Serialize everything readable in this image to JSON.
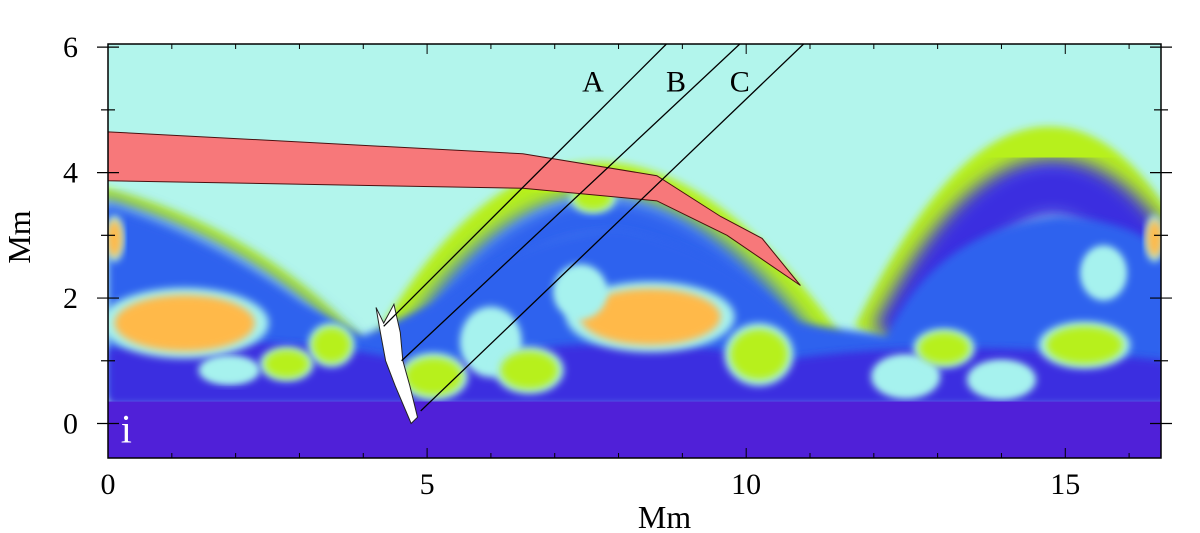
{
  "chart_data": {
    "type": "heatmap",
    "panel_label": "i",
    "xlabel": "Mm",
    "ylabel": "Mm",
    "xlim": [
      0,
      16.5
    ],
    "ylim": [
      -0.55,
      6.05
    ],
    "xticks": [
      0,
      5,
      10,
      15
    ],
    "xtick_labels": [
      "0",
      "5",
      "10",
      "15"
    ],
    "yticks": [
      0,
      2,
      4,
      6
    ],
    "ytick_labels": [
      "0",
      "2",
      "4",
      "6"
    ],
    "grid": false,
    "colors": {
      "background_cyan": "#b2f5ec",
      "green_shell": "#b7f01e",
      "dark_blue": "#3b2fe0",
      "mid_blue": "#2f62ee",
      "light_cyan": "#a6f2ee",
      "orange_yellow": "#ffb94a",
      "bottom_violet": "#5020d8",
      "pink_band": "#f7787a",
      "spicule": "#ffffff"
    },
    "pink_band": {
      "top": [
        [
          0,
          4.65
        ],
        [
          6.5,
          4.3
        ],
        [
          8.6,
          3.95
        ],
        [
          9.6,
          3.3
        ],
        [
          10.25,
          2.95
        ],
        [
          10.85,
          2.2
        ]
      ],
      "bottom": [
        [
          10.85,
          2.2
        ],
        [
          9.7,
          3.0
        ],
        [
          8.6,
          3.55
        ],
        [
          6.5,
          3.75
        ],
        [
          0,
          3.87
        ]
      ]
    },
    "spicule_outline": [
      [
        4.2,
        1.85
      ],
      [
        4.32,
        1.6
      ],
      [
        4.48,
        1.9
      ],
      [
        4.58,
        1.45
      ],
      [
        4.62,
        1.0
      ],
      [
        4.73,
        0.6
      ],
      [
        4.85,
        0.1
      ],
      [
        4.75,
        0.0
      ],
      [
        4.5,
        0.6
      ],
      [
        4.35,
        1.0
      ],
      [
        4.25,
        1.55
      ]
    ],
    "slit_lines": [
      {
        "name": "A",
        "x0": 4.32,
        "y0": 1.55,
        "x1": 8.75,
        "y1": 6.05
      },
      {
        "name": "B",
        "x0": 4.6,
        "y0": 1.0,
        "x1": 9.9,
        "y1": 6.05
      },
      {
        "name": "C",
        "x0": 4.9,
        "y0": 0.2,
        "x1": 10.9,
        "y1": 6.05
      }
    ],
    "line_labels": [
      {
        "text": "A",
        "x": 7.6,
        "y": 5.45
      },
      {
        "text": "B",
        "x": 8.9,
        "y": 5.45
      },
      {
        "text": "C",
        "x": 9.9,
        "y": 5.45
      }
    ],
    "blobs": [
      {
        "x": 1.2,
        "y": 1.6,
        "rx": 1.1,
        "ry": 0.45,
        "color": "#ffb94a"
      },
      {
        "x": 8.5,
        "y": 1.7,
        "rx": 1.1,
        "ry": 0.45,
        "color": "#ffb94a"
      },
      {
        "x": 3.5,
        "y": 1.25,
        "rx": 0.3,
        "ry": 0.28,
        "color": "#b7f01e"
      },
      {
        "x": 2.8,
        "y": 0.95,
        "rx": 0.35,
        "ry": 0.22,
        "color": "#b7f01e"
      },
      {
        "x": 1.9,
        "y": 0.85,
        "rx": 0.4,
        "ry": 0.18,
        "color": "#a6f2ee"
      },
      {
        "x": 5.1,
        "y": 0.75,
        "rx": 0.45,
        "ry": 0.3,
        "color": "#b7f01e"
      },
      {
        "x": 6.0,
        "y": 1.3,
        "rx": 0.4,
        "ry": 0.45,
        "color": "#a6f2ee"
      },
      {
        "x": 6.6,
        "y": 0.85,
        "rx": 0.45,
        "ry": 0.3,
        "color": "#b7f01e"
      },
      {
        "x": 7.4,
        "y": 2.1,
        "rx": 0.35,
        "ry": 0.35,
        "color": "#a6f2ee"
      },
      {
        "x": 10.2,
        "y": 1.1,
        "rx": 0.45,
        "ry": 0.4,
        "color": "#b7f01e"
      },
      {
        "x": 12.5,
        "y": 0.75,
        "rx": 0.45,
        "ry": 0.28,
        "color": "#a6f2ee"
      },
      {
        "x": 13.1,
        "y": 1.2,
        "rx": 0.4,
        "ry": 0.25,
        "color": "#b7f01e"
      },
      {
        "x": 14.0,
        "y": 0.7,
        "rx": 0.45,
        "ry": 0.25,
        "color": "#a6f2ee"
      },
      {
        "x": 15.3,
        "y": 1.25,
        "rx": 0.6,
        "ry": 0.3,
        "color": "#b7f01e"
      },
      {
        "x": 15.6,
        "y": 2.4,
        "rx": 0.3,
        "ry": 0.35,
        "color": "#a6f2ee"
      },
      {
        "x": 7.6,
        "y": 3.6,
        "rx": 0.3,
        "ry": 0.2,
        "color": "#b7f01e"
      },
      {
        "x": 0.1,
        "y": 2.95,
        "rx": 0.12,
        "ry": 0.3,
        "color": "#ffb94a"
      },
      {
        "x": 16.4,
        "y": 2.95,
        "rx": 0.12,
        "ry": 0.3,
        "color": "#ffb94a"
      }
    ]
  }
}
